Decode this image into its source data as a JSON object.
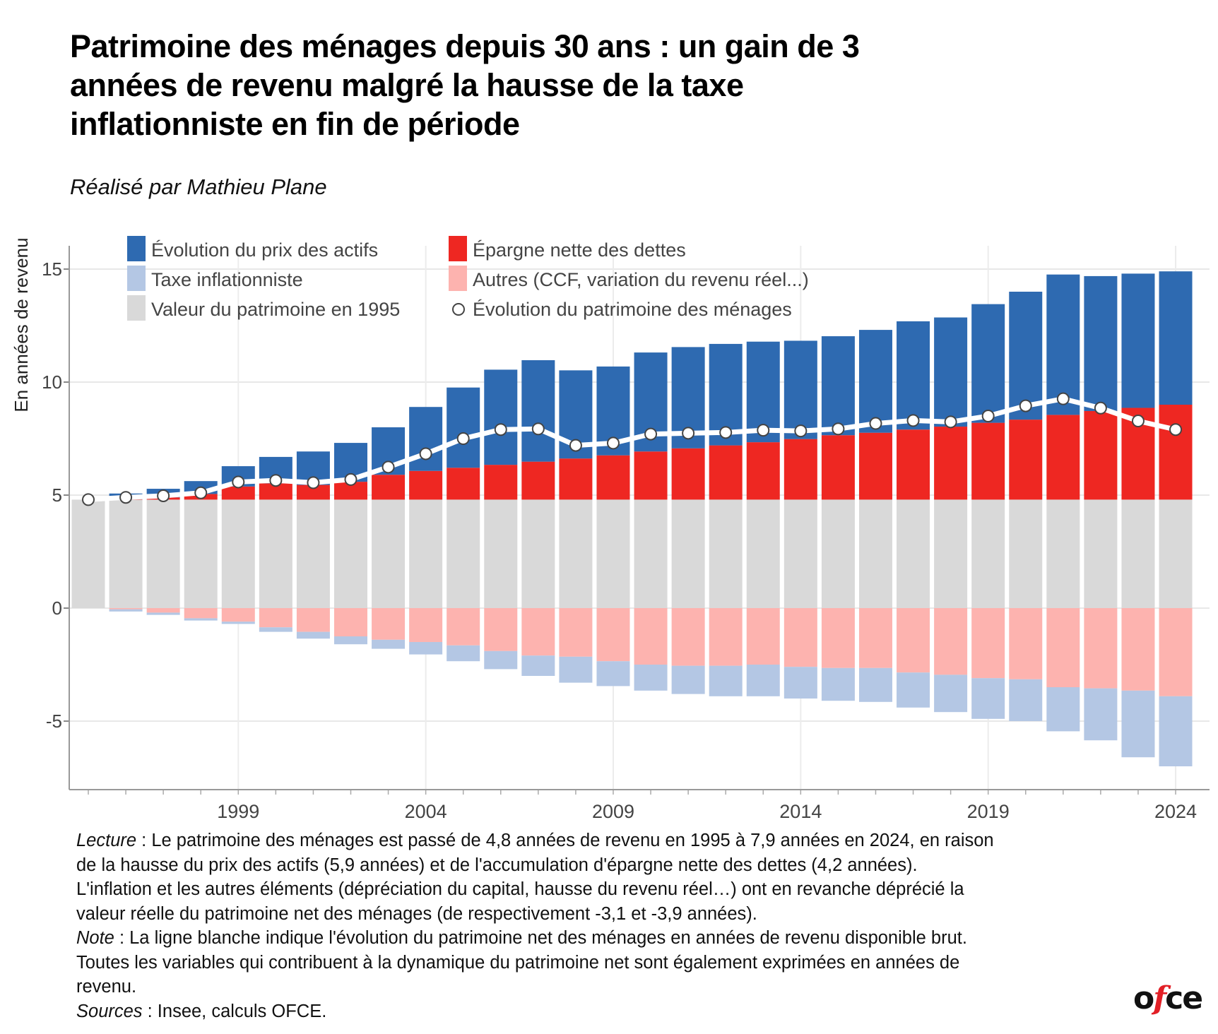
{
  "header": {
    "title_lines": [
      "Patrimoine des ménages depuis 30 ans : un gain de 3",
      "années de revenu malgré la hausse de la taxe",
      "inflationniste en fin de période"
    ],
    "subtitle": "Réalisé par Mathieu Plane"
  },
  "chart_data": {
    "type": "bar",
    "stacked": true,
    "title": "Patrimoine des ménages depuis 30 ans : un gain de 3 années de revenu malgré la hausse de la taxe inflationniste en fin de période",
    "xlabel": "",
    "ylabel": "En années de revenu",
    "ylim": [
      -8,
      16
    ],
    "yticks": [
      -5,
      0,
      5,
      10,
      15
    ],
    "ytick_labels": [
      "-5",
      "0",
      "5",
      "10",
      "15"
    ],
    "xticks": [
      1999,
      2004,
      2009,
      2014,
      2019,
      2024
    ],
    "xtick_labels": [
      "1999",
      "2004",
      "2009",
      "2014",
      "2019",
      "2024"
    ],
    "grid": true,
    "legend_position": "top-left",
    "categories": [
      1995,
      1996,
      1997,
      1998,
      1999,
      2000,
      2001,
      2002,
      2003,
      2004,
      2005,
      2006,
      2007,
      2008,
      2009,
      2010,
      2011,
      2012,
      2013,
      2014,
      2015,
      2016,
      2017,
      2018,
      2019,
      2020,
      2021,
      2022,
      2023,
      2024
    ],
    "series": [
      {
        "name": "Valeur du patrimoine en 1995",
        "color": "#d9d9d9",
        "kind": "bar",
        "values": [
          4.8,
          4.8,
          4.8,
          4.8,
          4.8,
          4.8,
          4.8,
          4.8,
          4.8,
          4.8,
          4.8,
          4.8,
          4.8,
          4.8,
          4.8,
          4.8,
          4.8,
          4.8,
          4.8,
          4.8,
          4.8,
          4.8,
          4.8,
          4.8,
          4.8,
          4.8,
          4.8,
          4.8,
          4.8,
          4.8
        ]
      },
      {
        "name": "Épargne nette des dettes",
        "color": "#ee2722",
        "kind": "bar",
        "values": [
          0,
          0.02,
          0.1,
          0.25,
          0.58,
          0.72,
          0.65,
          0.79,
          1.1,
          1.27,
          1.41,
          1.54,
          1.68,
          1.82,
          1.96,
          2.13,
          2.27,
          2.4,
          2.54,
          2.68,
          2.85,
          2.96,
          3.1,
          3.23,
          3.4,
          3.54,
          3.75,
          3.92,
          4.06,
          4.2
        ]
      },
      {
        "name": "Évolution du prix des actifs",
        "color": "#2e6ab1",
        "kind": "bar",
        "values": [
          0,
          0.25,
          0.38,
          0.57,
          0.9,
          1.17,
          1.48,
          1.72,
          2.1,
          2.83,
          3.55,
          4.21,
          4.49,
          3.9,
          3.93,
          4.38,
          4.48,
          4.49,
          4.45,
          4.35,
          4.38,
          4.55,
          4.79,
          4.83,
          5.25,
          5.66,
          6.21,
          5.97,
          5.94,
          5.9
        ]
      },
      {
        "name": "Autres (CCF, variation du revenu réel...)",
        "color": "#fdb3af",
        "kind": "bar",
        "values": [
          0,
          -0.05,
          -0.2,
          -0.45,
          -0.6,
          -0.85,
          -1.05,
          -1.25,
          -1.4,
          -1.5,
          -1.65,
          -1.9,
          -2.1,
          -2.15,
          -2.35,
          -2.5,
          -2.55,
          -2.55,
          -2.5,
          -2.6,
          -2.65,
          -2.65,
          -2.85,
          -2.95,
          -3.1,
          -3.15,
          -3.5,
          -3.55,
          -3.65,
          -3.9
        ]
      },
      {
        "name": "Taxe inflationniste",
        "color": "#b4c7e4",
        "kind": "bar",
        "values": [
          0,
          -0.1,
          -0.1,
          -0.1,
          -0.1,
          -0.2,
          -0.3,
          -0.35,
          -0.4,
          -0.55,
          -0.7,
          -0.8,
          -0.9,
          -1.15,
          -1.1,
          -1.15,
          -1.25,
          -1.35,
          -1.4,
          -1.4,
          -1.45,
          -1.5,
          -1.55,
          -1.65,
          -1.8,
          -1.85,
          -1.95,
          -2.3,
          -2.95,
          -3.1
        ]
      },
      {
        "name": "Évolution du patrimoine des ménages",
        "color": "#ffffff",
        "kind": "line",
        "values": [
          4.8,
          4.9,
          4.97,
          5.1,
          5.58,
          5.65,
          5.55,
          5.69,
          6.24,
          6.83,
          7.5,
          7.9,
          7.93,
          7.2,
          7.3,
          7.7,
          7.74,
          7.77,
          7.87,
          7.84,
          7.93,
          8.17,
          8.3,
          8.24,
          8.5,
          8.95,
          9.26,
          8.85,
          8.28,
          7.9
        ]
      }
    ]
  },
  "legend": {
    "items": [
      {
        "label": "Évolution du prix des actifs",
        "color": "#2e6ab1",
        "marker": "square"
      },
      {
        "label": "Taxe inflationniste",
        "color": "#b4c7e4",
        "marker": "square"
      },
      {
        "label": "Valeur du patrimoine en 1995",
        "color": "#d9d9d9",
        "marker": "square"
      },
      {
        "label": "Épargne nette des dettes",
        "color": "#ee2722",
        "marker": "square"
      },
      {
        "label": "Autres (CCF, variation du revenu réel...)",
        "color": "#fdb3af",
        "marker": "square"
      },
      {
        "label": "Évolution du patrimoine des ménages",
        "color": "#ffffff",
        "marker": "circle"
      }
    ]
  },
  "notes": {
    "lecture_label": "Lecture",
    "lecture_lines": [
      " : Le patrimoine des ménages est passé de 4,8 années de revenu en 1995 à 7,9 années en 2024, en raison",
      "de la hausse du prix des actifs (5,9 années) et de l'accumulation d'épargne nette des dettes (4,2 années).",
      "L'inflation et les autres éléments (dépréciation du capital, hausse du revenu réel…) ont en revanche déprécié la",
      "valeur réelle du patrimoine net des ménages (de respectivement -3,1 et -3,9 années)."
    ],
    "note_label": "Note",
    "note_lines": [
      " : La ligne blanche indique l'évolution du patrimoine net des ménages en années de revenu disponible brut.",
      "Toutes les variables qui contribuent à la dynamique du patrimoine net sont également exprimées en années de",
      "revenu."
    ],
    "sources_label": "Sources",
    "sources_text": " : Insee, calculs OFCE."
  },
  "logo": {
    "prefix": "o",
    "accent": "f",
    "suffix": "ce"
  }
}
